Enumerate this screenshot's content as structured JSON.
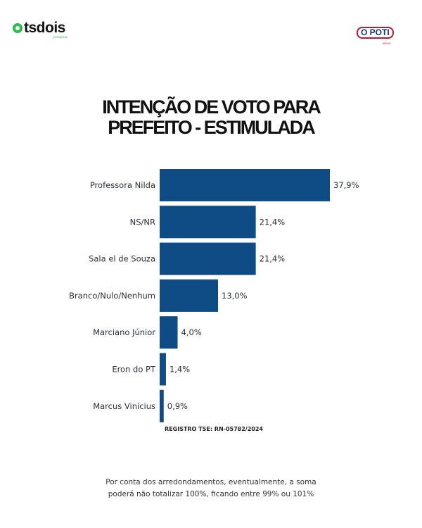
{
  "logos": {
    "left": "tsdois",
    "left_sub": "pesquisas",
    "right": "O POTI",
    "right_sub": "NEWS"
  },
  "chart_data": {
    "type": "bar",
    "orientation": "horizontal",
    "title_lines": [
      "INTENÇÃO DE VOTO PARA",
      "PREFEITO - ESTIMULADA"
    ],
    "categories": [
      "Professora Nilda",
      "NS/NR",
      "Sala el de Souza",
      "Branco/Nulo/Nenhum",
      "Marciano Júnior",
      "Eron do PT",
      "Marcus Vinícius"
    ],
    "values": [
      37.9,
      21.4,
      21.4,
      13.0,
      4.0,
      1.4,
      0.9
    ],
    "data_labels": [
      "37,9%",
      "21,4%",
      "21,4%",
      "13,0%",
      "4,0%",
      "1,4%",
      "0,9%"
    ],
    "bar_color": "#0f4c86",
    "grid": false
  },
  "registro": "REGISTRO TSE: RN-05782/2024",
  "note_lines": [
    "Por conta dos arredondamentos, eventualmente, a soma",
    "poderá não totalizar 100%, ficando entre 99% ou 101%"
  ]
}
